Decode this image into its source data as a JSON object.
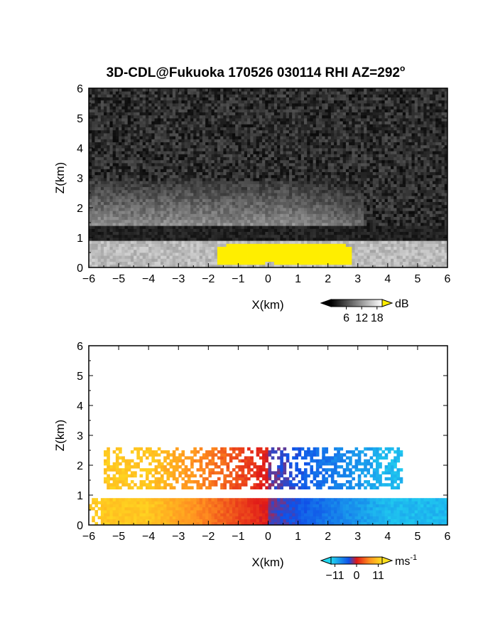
{
  "title": "3D-CDL@Fukuoka 170526 030114 RHI AZ=292",
  "title_suffix": "o",
  "chart_data": [
    {
      "type": "heatmap",
      "panel": "SNR",
      "xlabel": "X(km)",
      "ylabel": "Z(km)",
      "xlim": [
        -6,
        6
      ],
      "ylim": [
        0,
        6
      ],
      "xticks": [
        -6,
        -5,
        -4,
        -3,
        -2,
        -1,
        0,
        1,
        2,
        3,
        4,
        5,
        6
      ],
      "yticks": [
        0,
        1,
        2,
        3,
        4,
        5,
        6
      ],
      "colorbar": {
        "unit": "dB",
        "ticks": [
          6,
          12,
          18
        ],
        "range": [
          0,
          20
        ],
        "palette": "grayscale, yellow above max"
      },
      "features": [
        {
          "name": "noise background",
          "x_range": [
            -6,
            6
          ],
          "z_range": [
            0,
            6
          ],
          "level_db": 3
        },
        {
          "name": "aerosol layer",
          "x_range": [
            -6,
            6
          ],
          "z_range": [
            0,
            0.9
          ],
          "level_db": 15
        },
        {
          "name": "dark gap",
          "x_range": [
            -6,
            6
          ],
          "z_range": [
            0.9,
            1.4
          ],
          "level_db": 2
        },
        {
          "name": "upper bright layer",
          "x_range": [
            -6,
            3
          ],
          "z_range": [
            1.4,
            2.9
          ],
          "level_db": 10
        },
        {
          "name": "saturated region",
          "x_range": [
            -1.7,
            2.8
          ],
          "z_range": [
            0.1,
            0.9
          ],
          "level_db": 20
        }
      ]
    },
    {
      "type": "heatmap",
      "panel": "Doppler velocity",
      "xlabel": "X(km)",
      "ylabel": "Z(km)",
      "xlim": [
        -6,
        6
      ],
      "ylim": [
        0,
        6
      ],
      "xticks": [
        -6,
        -5,
        -4,
        -3,
        -2,
        -1,
        0,
        1,
        2,
        3,
        4,
        5,
        6
      ],
      "yticks": [
        0,
        1,
        2,
        3,
        4,
        5,
        6
      ],
      "colorbar": {
        "unit": "ms",
        "unit_exponent": "-1",
        "ticks": [
          -11,
          0,
          11
        ],
        "range": [
          -13,
          13
        ],
        "palette": "cyan-blue-red-yellow"
      },
      "features": [
        {
          "name": "lower layer left",
          "x_range": [
            -6,
            0
          ],
          "z_range": [
            0,
            0.9
          ],
          "velocity_ms": [
            10,
            0
          ]
        },
        {
          "name": "lower layer right",
          "x_range": [
            0,
            6
          ],
          "z_range": [
            0,
            0.9
          ],
          "velocity_ms": [
            -2,
            -11
          ]
        },
        {
          "name": "upper layer left",
          "x_range": [
            -5.5,
            0
          ],
          "z_range": [
            1.2,
            2.6
          ],
          "velocity_ms": [
            10,
            0
          ]
        },
        {
          "name": "upper layer right",
          "x_range": [
            0,
            4.5
          ],
          "z_range": [
            1.2,
            2.6
          ],
          "velocity_ms": [
            -2,
            -11
          ]
        }
      ]
    }
  ]
}
